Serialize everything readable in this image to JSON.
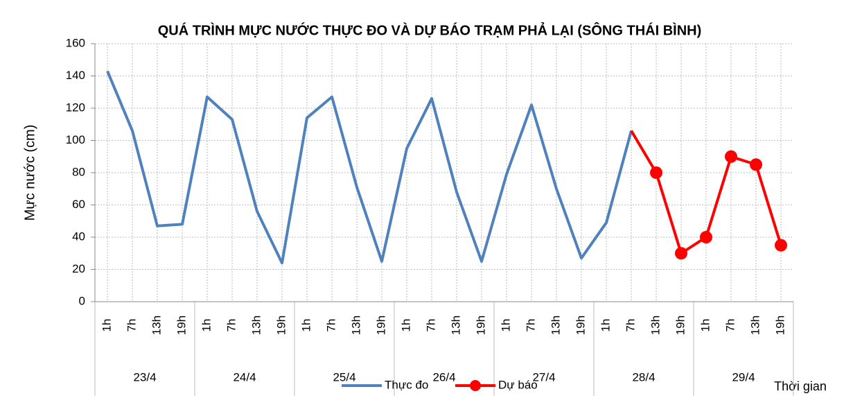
{
  "chart_data": {
    "type": "line",
    "title": "QUÁ TRÌNH MỰC NƯỚC THỰC ĐO VÀ DỰ BÁO TRẠM PHẢ LẠI (SÔNG THÁI BÌNH)",
    "y_label": "Mực nước (cm)",
    "x_label": "Thời gian",
    "categories": [
      "1h",
      "7h",
      "13h",
      "19h",
      "1h",
      "7h",
      "13h",
      "19h",
      "1h",
      "7h",
      "13h",
      "19h",
      "1h",
      "7h",
      "13h",
      "19h",
      "1h",
      "7h",
      "13h",
      "19h",
      "1h",
      "7h",
      "13h",
      "19h",
      "1h",
      "7h",
      "13h",
      "19h"
    ],
    "groups": [
      "23/4",
      "24/4",
      "25/4",
      "26/4",
      "27/4",
      "28/4",
      "29/4"
    ],
    "series": [
      {
        "name": "Thực đo",
        "color": "#4f81bd",
        "values": [
          143,
          106,
          47,
          48,
          127,
          113,
          56,
          24,
          114,
          127,
          71,
          25,
          95,
          126,
          68,
          25,
          79,
          122,
          70,
          27,
          49,
          106,
          null,
          null,
          null,
          null,
          null,
          null
        ]
      },
      {
        "name": "Dự báo",
        "color": "#ff0000",
        "values": [
          null,
          null,
          null,
          null,
          null,
          null,
          null,
          null,
          null,
          null,
          null,
          null,
          null,
          null,
          null,
          null,
          null,
          null,
          null,
          null,
          null,
          106,
          80,
          30,
          40,
          90,
          85,
          35
        ]
      }
    ],
    "ylim": [
      0,
      160
    ],
    "yticks": [
      0,
      20,
      40,
      60,
      80,
      100,
      120,
      140,
      160
    ],
    "grid": true
  }
}
